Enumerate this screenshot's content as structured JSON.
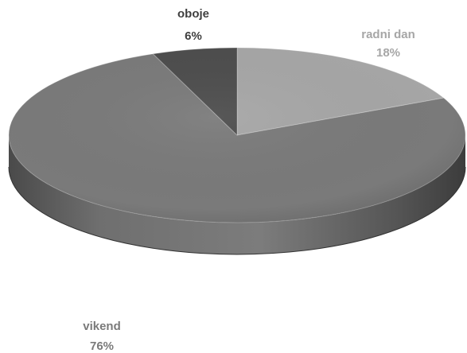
{
  "chart_data": {
    "type": "pie",
    "style": "3d",
    "title": "",
    "slices": [
      {
        "label": "radni dan",
        "value": 18,
        "value_label": "18%",
        "color": "#a6a6a6",
        "label_color": "#a6a6a6"
      },
      {
        "label": "vikend",
        "value": 76,
        "value_label": "76%",
        "color": "#7a7a7a",
        "label_color": "#7a7a7a"
      },
      {
        "label": "oboje",
        "value": 6,
        "value_label": "6%",
        "color": "#4d4d4d",
        "label_color": "#3f3f3f"
      }
    ]
  }
}
